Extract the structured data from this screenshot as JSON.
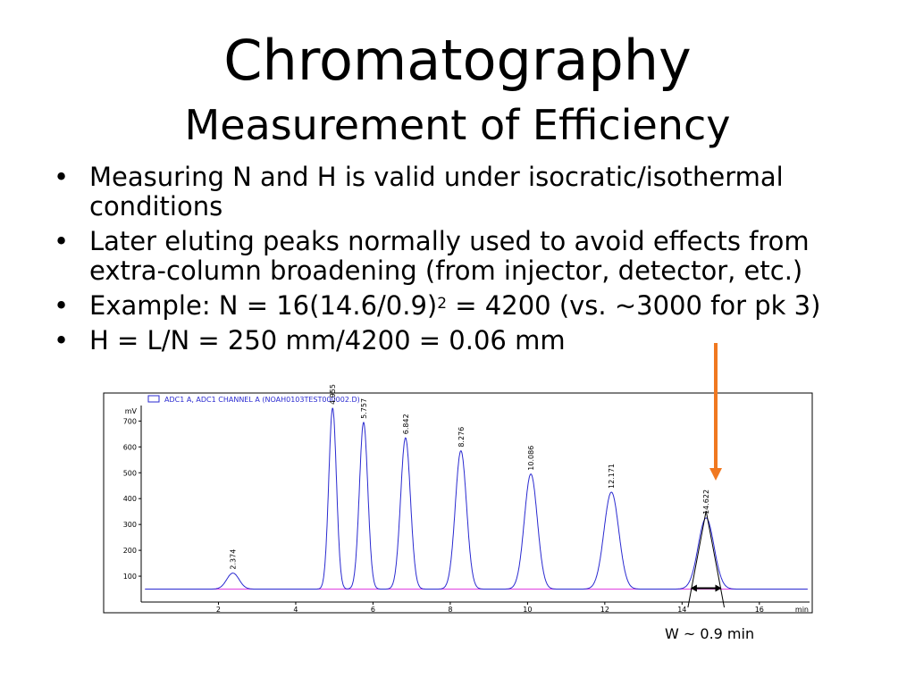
{
  "title": "Chromatography",
  "subtitle": "Measurement of Efficiency",
  "bullets": [
    {
      "text": "Measuring N and H is valid under isocratic/isothermal conditions"
    },
    {
      "pre": "Later eluting peaks normally used to avoid effects from extra-column broadening (from injector, detector, etc.)"
    },
    {
      "pre": "Example: N = 16(14.6/0.9)",
      "sup": "2",
      "post": " = 4200 (vs. ~3000 for pk 3)"
    },
    {
      "pre": "H = L/N = 250 mm/4200 = 0.06 mm"
    }
  ],
  "width_note": "W ~ 0.9 min",
  "colors": {
    "trace": "#2a2ad0",
    "baseline": "#e040e0",
    "arrow": "#f07820",
    "frame": "#000000"
  },
  "chart_data": {
    "type": "line",
    "legend": "ADC1 A, ADC1 CHANNEL A (NOAH0103TEST000002.D)",
    "ylabel": "mV",
    "xlabel": "min",
    "xlim": [
      0,
      17.3
    ],
    "ylim": [
      0,
      760
    ],
    "xticks": [
      2,
      4,
      6,
      8,
      10,
      12,
      14,
      16
    ],
    "yticks": [
      100,
      200,
      300,
      400,
      500,
      600,
      700
    ],
    "baseline": 50,
    "peaks": [
      {
        "rt": 2.374,
        "label": "2.374",
        "height": 62,
        "width": 0.35
      },
      {
        "rt": 4.955,
        "label": "4.955",
        "height": 700,
        "width": 0.22
      },
      {
        "rt": 5.757,
        "label": "5.757",
        "height": 645,
        "width": 0.24
      },
      {
        "rt": 6.842,
        "label": "6.842",
        "height": 585,
        "width": 0.28
      },
      {
        "rt": 8.276,
        "label": "8.276",
        "height": 535,
        "width": 0.32
      },
      {
        "rt": 10.086,
        "label": "10.086",
        "height": 445,
        "width": 0.37
      },
      {
        "rt": 12.171,
        "label": "12.171",
        "height": 375,
        "width": 0.42
      },
      {
        "rt": 14.622,
        "label": "14.622",
        "height": 275,
        "width": 0.45
      }
    ]
  }
}
